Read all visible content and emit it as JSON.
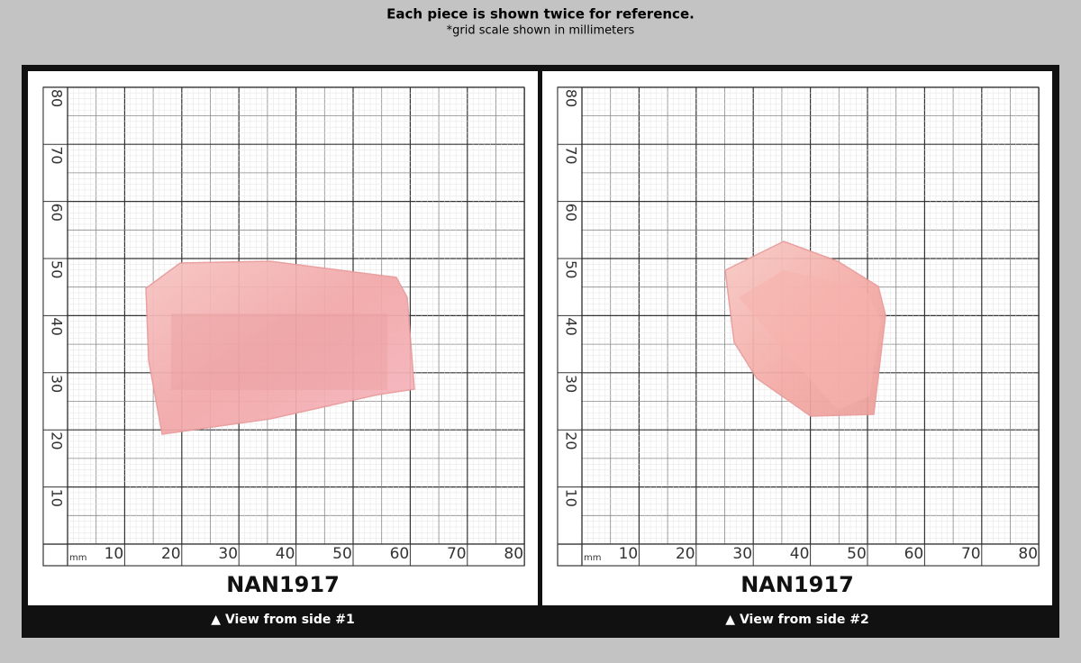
{
  "header": {
    "title": "Each piece is shown twice for reference.",
    "subtitle": "*grid scale shown in millimeters"
  },
  "panels": [
    {
      "y_labels": [
        80,
        70,
        60,
        50,
        40,
        30,
        20,
        10
      ],
      "unit": "mm",
      "x_labels": [
        10,
        20,
        30,
        40,
        50,
        60,
        70,
        80
      ],
      "sample_id": "NAN1917",
      "caption": "▲ View from side #1"
    },
    {
      "y_labels": [
        80,
        70,
        60,
        50,
        40,
        30,
        20,
        10
      ],
      "unit": "mm",
      "x_labels": [
        10,
        20,
        30,
        40,
        50,
        60,
        70,
        80
      ],
      "sample_id": "NAN1917",
      "caption": "▲ View from side #2"
    }
  ]
}
